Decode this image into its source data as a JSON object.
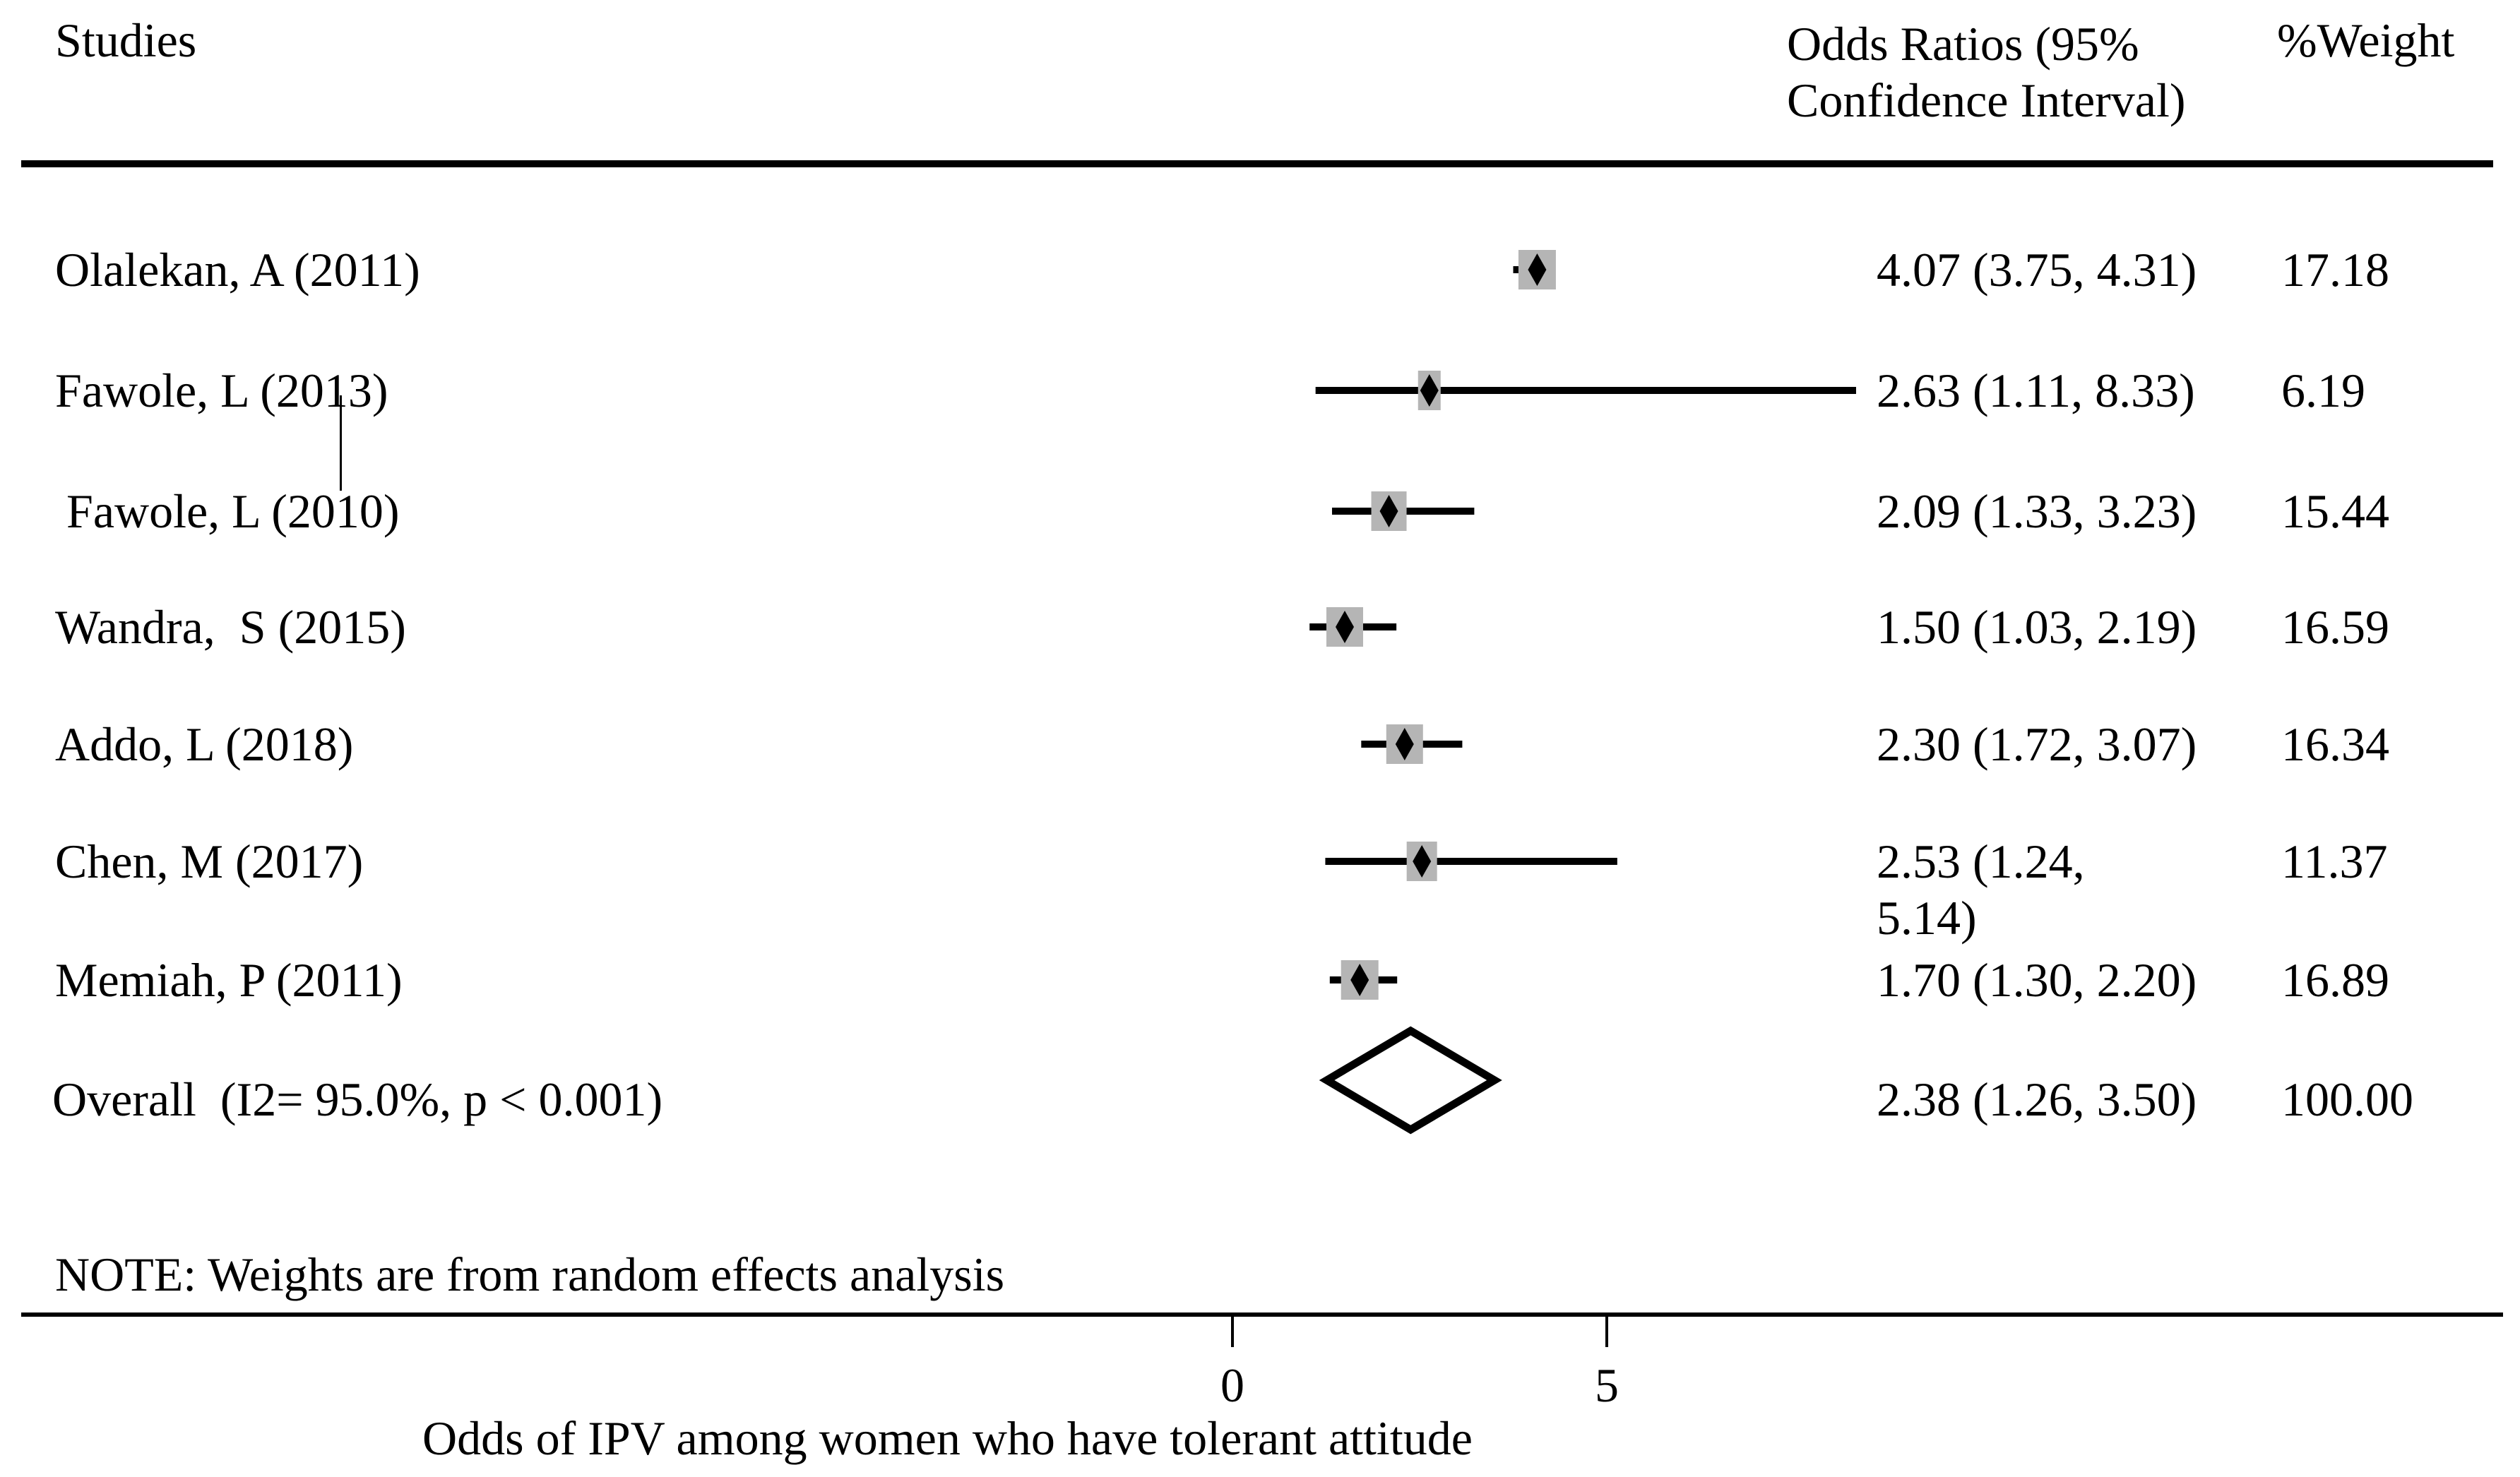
{
  "header": {
    "studies": "Studies",
    "odds_ratios": "Odds Ratios (95% Confidence Interval)",
    "weight": "%Weight"
  },
  "note": "NOTE: Weights are from random effects analysis",
  "colors": {
    "marker_gray": "#b5b5b5",
    "ink": "#000000"
  },
  "chart_data": {
    "type": "forest",
    "title": "",
    "xlabel": "Odds of IPV among women who have tolerant attitude",
    "axis_ticks": [
      0,
      5
    ],
    "axis_tick_labels": [
      "0",
      "5"
    ],
    "studies": [
      {
        "label": "Olalekan, A (2011)",
        "indent": false,
        "or": 4.07,
        "ci_low": 3.75,
        "ci_high": 4.31,
        "weight": 17.18,
        "or_lines": [
          "4.07 (3.75, 4.31)"
        ],
        "weight_text": "17.18"
      },
      {
        "label": "Fawole, L (2013)",
        "indent": false,
        "or": 2.63,
        "ci_low": 1.11,
        "ci_high": 8.33,
        "weight": 6.19,
        "or_lines": [
          "2.63 (1.11, 8.33)"
        ],
        "weight_text": "6.19"
      },
      {
        "label": "Fawole, L (2010)",
        "indent": true,
        "or": 2.09,
        "ci_low": 1.33,
        "ci_high": 3.23,
        "weight": 15.44,
        "or_lines": [
          "2.09 (1.33, 3.23)"
        ],
        "weight_text": "15.44"
      },
      {
        "label": "Wandra,  S (2015)",
        "indent": false,
        "or": 1.5,
        "ci_low": 1.03,
        "ci_high": 2.19,
        "weight": 16.59,
        "or_lines": [
          "1.50 (1.03, 2.19)"
        ],
        "weight_text": "16.59"
      },
      {
        "label": "Addo, L (2018)",
        "indent": false,
        "or": 2.3,
        "ci_low": 1.72,
        "ci_high": 3.07,
        "weight": 16.34,
        "or_lines": [
          "2.30 (1.72, 3.07)"
        ],
        "weight_text": "16.34"
      },
      {
        "label": "Chen, M (2017)",
        "indent": false,
        "or": 2.53,
        "ci_low": 1.24,
        "ci_high": 5.14,
        "weight": 11.37,
        "or_lines": [
          "2.53 (1.24,",
          "5.14)"
        ],
        "weight_text": "11.37"
      },
      {
        "label": "Memiah, P (2011)",
        "indent": false,
        "or": 1.7,
        "ci_low": 1.3,
        "ci_high": 2.2,
        "weight": 16.89,
        "or_lines": [
          "1.70 (1.30, 2.20)"
        ],
        "weight_text": "16.89"
      }
    ],
    "overall": {
      "label": "Overall  (I2= 95.0%, p < 0.001)",
      "or": 2.38,
      "ci_low": 1.26,
      "ci_high": 3.5,
      "weight": 100.0,
      "or_lines": [
        "2.38 (1.26, 3.50)"
      ],
      "weight_text": "100.00"
    }
  }
}
